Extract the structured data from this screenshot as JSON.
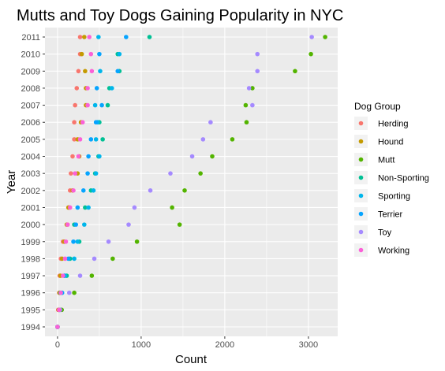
{
  "chart_data": {
    "type": "scatter",
    "title": "Mutts and Toy Dogs Gaining Popularity in NYC",
    "xlabel": "Count",
    "ylabel": "Year",
    "xlim": [
      -150,
      3350
    ],
    "x_ticks": [
      0,
      1000,
      2000,
      3000
    ],
    "categories": [
      "1994",
      "1995",
      "1996",
      "1997",
      "1998",
      "1999",
      "2000",
      "2001",
      "2002",
      "2003",
      "2004",
      "2005",
      "2006",
      "2007",
      "2008",
      "2009",
      "2010",
      "2011"
    ],
    "legend_title": "Dog Group",
    "legend_position": "right",
    "grid": true,
    "series": [
      {
        "name": "Herding",
        "color": "#F8766D",
        "values": [
          0,
          8,
          20,
          25,
          40,
          65,
          120,
          140,
          150,
          160,
          180,
          200,
          200,
          210,
          230,
          250,
          270,
          270
        ]
      },
      {
        "name": "Hound",
        "color": "#C49A00",
        "values": [
          0,
          12,
          25,
          35,
          55,
          80,
          110,
          130,
          180,
          240,
          260,
          240,
          280,
          340,
          340,
          330,
          290,
          320
        ]
      },
      {
        "name": "Mutt",
        "color": "#53B400",
        "values": [
          0,
          50,
          200,
          410,
          660,
          950,
          1460,
          1370,
          1520,
          1710,
          1850,
          2090,
          2260,
          2250,
          2330,
          2840,
          3030,
          3200
        ]
      },
      {
        "name": "Non-Sporting",
        "color": "#00C094",
        "values": [
          0,
          20,
          35,
          110,
          150,
          260,
          200,
          330,
          400,
          450,
          490,
          540,
          500,
          600,
          620,
          740,
          720,
          1100
        ]
      },
      {
        "name": "Sporting",
        "color": "#00B6EB",
        "values": [
          0,
          30,
          50,
          90,
          200,
          240,
          320,
          370,
          430,
          460,
          500,
          460,
          480,
          450,
          650,
          510,
          740,
          490
        ]
      },
      {
        "name": "Terrier",
        "color": "#06A4FF",
        "values": [
          0,
          25,
          55,
          80,
          130,
          190,
          220,
          240,
          310,
          360,
          370,
          400,
          460,
          530,
          470,
          720,
          500,
          820
        ]
      },
      {
        "name": "Toy",
        "color": "#A58AFF",
        "values": [
          0,
          30,
          140,
          270,
          440,
          610,
          850,
          920,
          1110,
          1350,
          1610,
          1740,
          1830,
          2330,
          2290,
          2390,
          2390,
          3040
        ]
      },
      {
        "name": "Working",
        "color": "#FB61D7",
        "values": [
          0,
          18,
          40,
          65,
          90,
          100,
          120,
          150,
          190,
          210,
          250,
          270,
          300,
          360,
          360,
          410,
          400,
          380
        ]
      }
    ]
  }
}
